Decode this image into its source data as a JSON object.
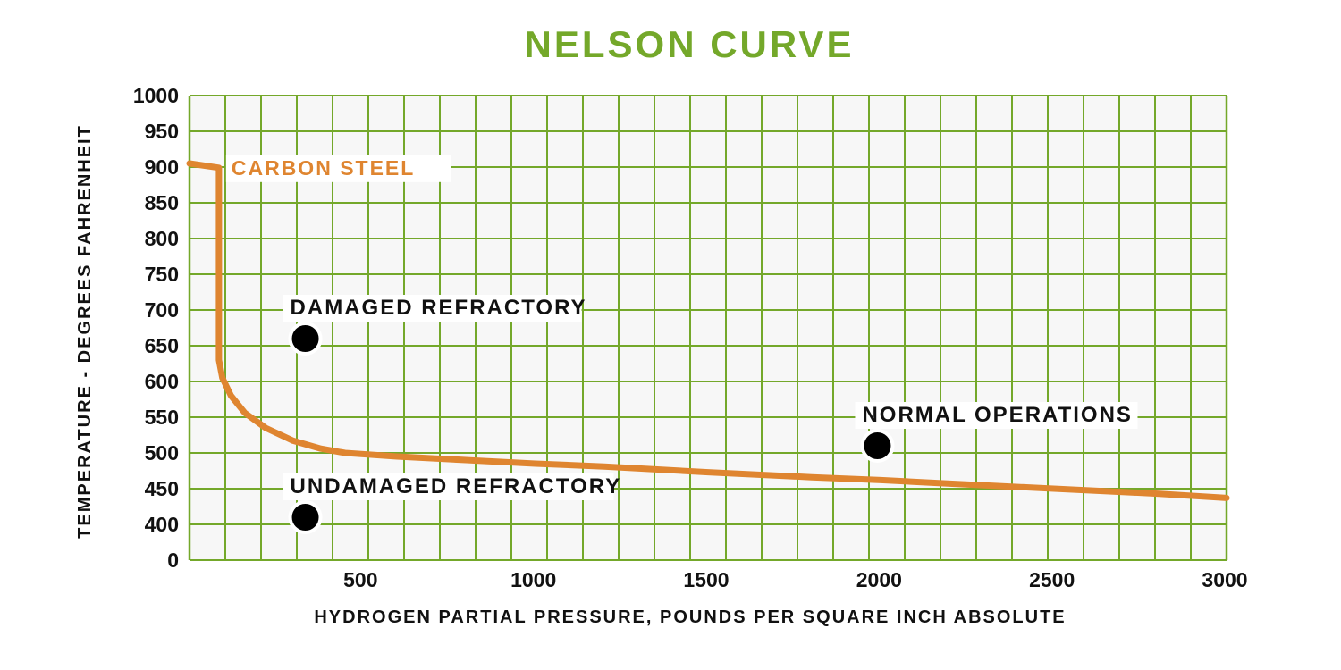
{
  "chart_data": {
    "type": "line",
    "title": "NELSON CURVE",
    "xlabel": "HYDROGEN PARTIAL PRESSURE, POUNDS PER SQUARE INCH ABSOLUTE",
    "ylabel": "TEMPERATURE - DEGREES FAHRENHEIT",
    "xlim": [
      0,
      3000
    ],
    "ylim": [
      0,
      1000
    ],
    "x_ticks": [
      500,
      1000,
      1500,
      2000,
      2500,
      3000
    ],
    "y_ticks": [
      0,
      400,
      450,
      500,
      550,
      600,
      650,
      700,
      750,
      800,
      850,
      900,
      950,
      1000
    ],
    "grid": true,
    "grid_color": "#74a82a",
    "plot_background": "#f7f7f7",
    "series": [
      {
        "name": "CARBON STEEL",
        "color": "#df8530",
        "points": [
          [
            0,
            905
          ],
          [
            85,
            899
          ],
          [
            85,
            630
          ],
          [
            95,
            605
          ],
          [
            120,
            580
          ],
          [
            160,
            556
          ],
          [
            220,
            535
          ],
          [
            300,
            517
          ],
          [
            380,
            506
          ],
          [
            450,
            500
          ],
          [
            600,
            495
          ],
          [
            800,
            490
          ],
          [
            1000,
            485
          ],
          [
            1200,
            481
          ],
          [
            1500,
            473
          ],
          [
            1800,
            466
          ],
          [
            2000,
            462
          ],
          [
            2200,
            457
          ],
          [
            2500,
            450
          ],
          [
            2800,
            443
          ],
          [
            3000,
            437
          ]
        ]
      }
    ],
    "points": [
      {
        "label": "DAMAGED REFRACTORY",
        "x": 335,
        "y": 660
      },
      {
        "label": "UNDAMAGED REFRACTORY",
        "x": 335,
        "y": 410
      },
      {
        "label": "NORMAL OPERATIONS",
        "x": 1990,
        "y": 510
      }
    ]
  }
}
